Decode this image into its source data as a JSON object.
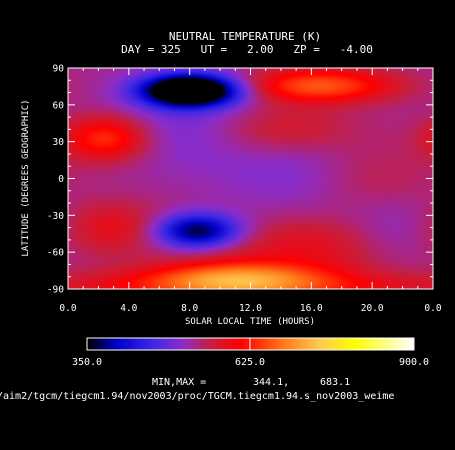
{
  "chart_data": {
    "type": "heatmap",
    "title": "NEUTRAL TEMPERATURE (K)",
    "subtitle": "DAY = 325   UT =   2.00   ZP =   -4.00",
    "xlabel": "SOLAR LOCAL TIME (HOURS)",
    "ylabel": "LATITUDE (DEGREES GEOGRAPHIC)",
    "x_ticks": [
      "0.0",
      "4.0",
      "8.0",
      "12.0",
      "16.0",
      "20.0",
      "0.0"
    ],
    "y_ticks": [
      "90",
      "60",
      "30",
      "0",
      "-30",
      "-60",
      "-90"
    ],
    "xlim": [
      0,
      24
    ],
    "ylim": [
      -90,
      90
    ],
    "colorbar": {
      "min_label": "350.0",
      "mid_label": "625.0",
      "max_label": "900.0",
      "range": [
        350,
        900
      ],
      "stops": [
        {
          "value": 350,
          "color": "#000000"
        },
        {
          "value": 400,
          "color": "#0000c8"
        },
        {
          "value": 460,
          "color": "#3c28e6"
        },
        {
          "value": 510,
          "color": "#8c2dc8"
        },
        {
          "value": 560,
          "color": "#c81e3c"
        },
        {
          "value": 610,
          "color": "#ff0000"
        },
        {
          "value": 680,
          "color": "#ff7818"
        },
        {
          "value": 740,
          "color": "#ffc850"
        },
        {
          "value": 800,
          "color": "#ffff00"
        },
        {
          "value": 900,
          "color": "#ffffff"
        }
      ]
    },
    "minmax_label": "MIN,MAX =",
    "min_value": "344.1,",
    "max_value": "683.1",
    "source_path": "/aim2/tgcm/tiegcm1.94/nov2003/proc/TGCM.tiegcm1.94.s_nov2003_weime",
    "field": {
      "base": 530,
      "features": [
        {
          "lt": 8.0,
          "lat": 72,
          "slt": 2.2,
          "slat": 9,
          "amp": -300
        },
        {
          "lt": 8.5,
          "lat": -43,
          "slt": 2.0,
          "slat": 10,
          "amp": -180
        },
        {
          "lt": 8.0,
          "lat": 45,
          "slt": 3.5,
          "slat": 25,
          "amp": -40
        },
        {
          "lt": 2.5,
          "lat": 33,
          "slt": 2.0,
          "slat": 13,
          "amp": 110
        },
        {
          "lt": 3.0,
          "lat": -40,
          "slt": 2.5,
          "slat": 15,
          "amp": 60
        },
        {
          "lt": 16.5,
          "lat": 76,
          "slt": 3.5,
          "slat": 10,
          "amp": 130
        },
        {
          "lt": 14.0,
          "lat": 40,
          "slt": 3.5,
          "slat": 15,
          "amp": 60
        },
        {
          "lt": 11.0,
          "lat": -82,
          "slt": 4.0,
          "slat": 10,
          "amp": 140
        },
        {
          "lt": 16.0,
          "lat": -55,
          "slt": 5.0,
          "slat": 18,
          "amp": 60
        },
        {
          "lt": 15.0,
          "lat": 8,
          "slt": 3.5,
          "slat": 30,
          "amp": -30
        },
        {
          "lt": 21.5,
          "lat": -45,
          "slt": 2.5,
          "slat": 20,
          "amp": -40
        },
        {
          "lt": 12.0,
          "lat": -90,
          "slt": 12,
          "slat": 10,
          "amp": 70
        },
        {
          "lt": 20.0,
          "lat": 0,
          "slt": 3.0,
          "slat": 20,
          "amp": 30
        }
      ]
    }
  }
}
